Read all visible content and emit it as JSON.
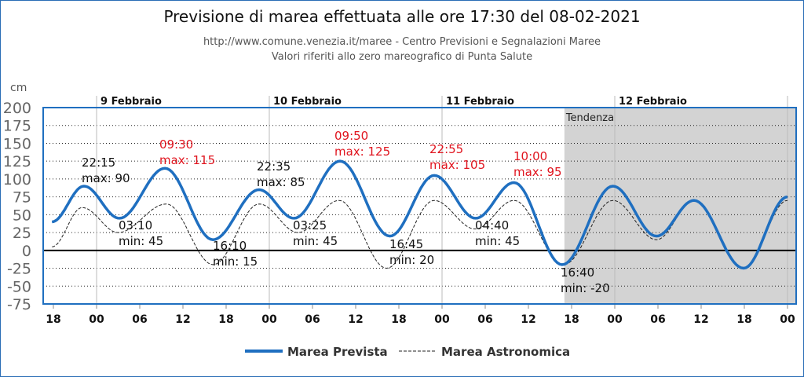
{
  "chart_data": {
    "type": "line",
    "title": "Previsione di marea effettuata alle ore 17:30 del 08-02-2021",
    "subtitle_1": "http://www.comune.venezia.it/maree - Centro Previsioni e Segnalazioni Maree",
    "subtitle_2": "Valori riferiti allo zero mareografico di Punta Salute",
    "ylabel": "cm",
    "ylim": [
      -75,
      200
    ],
    "yticks": [
      "200",
      "175",
      "150",
      "125",
      "100",
      "75",
      "50",
      "25",
      "0",
      "-25",
      "-50",
      "-75"
    ],
    "x_unit": "hours from 9 Feb 00:00",
    "xlim": [
      -7.4,
      97.1
    ],
    "xticks": [
      {
        "h": -6,
        "label": "18"
      },
      {
        "h": 0,
        "label": "00"
      },
      {
        "h": 6,
        "label": "06"
      },
      {
        "h": 12,
        "label": "12"
      },
      {
        "h": 18,
        "label": "18"
      },
      {
        "h": 24,
        "label": "00"
      },
      {
        "h": 30,
        "label": "06"
      },
      {
        "h": 36,
        "label": "12"
      },
      {
        "h": 42,
        "label": "18"
      },
      {
        "h": 48,
        "label": "00"
      },
      {
        "h": 54,
        "label": "06"
      },
      {
        "h": 60,
        "label": "12"
      },
      {
        "h": 66,
        "label": "18"
      },
      {
        "h": 72,
        "label": "00"
      },
      {
        "h": 78,
        "label": "06"
      },
      {
        "h": 84,
        "label": "12"
      },
      {
        "h": 90,
        "label": "18"
      },
      {
        "h": 96,
        "label": "00"
      }
    ],
    "days": [
      {
        "h": 0,
        "label": "9 Febbraio"
      },
      {
        "h": 24,
        "label": "10 Febbraio"
      },
      {
        "h": 48,
        "label": "11 Febbraio"
      },
      {
        "h": 72,
        "label": "12 Febbraio"
      }
    ],
    "tendency": {
      "from_h": 65.0,
      "label": "Tendenza"
    },
    "series": [
      {
        "name": "Marea Prevista",
        "color": "#1f6fc0",
        "points": [
          [
            -6.2,
            40
          ],
          [
            -1.75,
            90
          ],
          [
            3.17,
            45
          ],
          [
            9.5,
            115
          ],
          [
            16.17,
            15
          ],
          [
            22.58,
            85
          ],
          [
            27.42,
            45
          ],
          [
            33.83,
            125
          ],
          [
            40.75,
            20
          ],
          [
            46.92,
            105
          ],
          [
            52.67,
            45
          ],
          [
            58,
            95
          ],
          [
            64.67,
            -20
          ],
          [
            71.75,
            90
          ],
          [
            77.8,
            20
          ],
          [
            83,
            70
          ],
          [
            89.9,
            -25
          ],
          [
            96,
            75
          ]
        ]
      },
      {
        "name": "Marea Astronomica",
        "color": "#222222",
        "points": [
          [
            -6.2,
            5
          ],
          [
            -2,
            60
          ],
          [
            3,
            25
          ],
          [
            9.7,
            65
          ],
          [
            16.2,
            -20
          ],
          [
            22.6,
            65
          ],
          [
            28,
            25
          ],
          [
            33.7,
            70
          ],
          [
            40.3,
            -25
          ],
          [
            46.9,
            70
          ],
          [
            52.6,
            30
          ],
          [
            58,
            70
          ],
          [
            64.9,
            -20
          ],
          [
            71.75,
            70
          ],
          [
            77.8,
            15
          ],
          [
            83,
            70
          ],
          [
            89.9,
            -25
          ],
          [
            96,
            70
          ]
        ]
      }
    ],
    "annotations": [
      {
        "time": "22:15",
        "text": "max: 90",
        "alert": false
      },
      {
        "time": "03:10",
        "text": "min: 45",
        "alert": false
      },
      {
        "time": "09:30",
        "text": "max: 115",
        "alert": true
      },
      {
        "time": "16:10",
        "text": "min: 15",
        "alert": false
      },
      {
        "time": "22:35",
        "text": "max: 85",
        "alert": false
      },
      {
        "time": "03:25",
        "text": "min: 45",
        "alert": false
      },
      {
        "time": "09:50",
        "text": "max: 125",
        "alert": true
      },
      {
        "time": "16:45",
        "text": "min: 20",
        "alert": false
      },
      {
        "time": "22:55",
        "text": "max: 105",
        "alert": true
      },
      {
        "time": "04:40",
        "text": "min: 45",
        "alert": false
      },
      {
        "time": "10:00",
        "text": "max: 95",
        "alert": true
      },
      {
        "time": "16:40",
        "text": "min: -20",
        "alert": false
      }
    ],
    "alert_color": "#e0141e",
    "legend_position": "bottom-center"
  }
}
